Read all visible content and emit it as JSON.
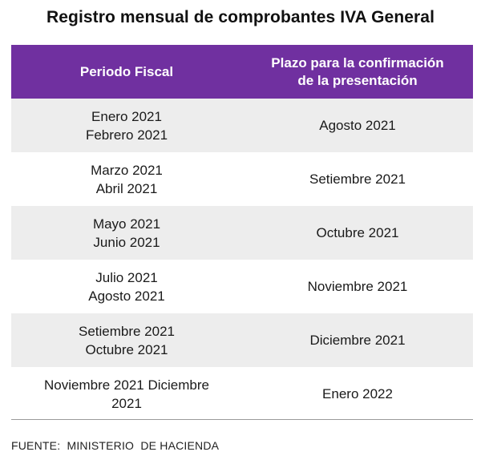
{
  "title": "Registro mensual  de comprobantes  IVA General",
  "table": {
    "headers": [
      "Periodo Fiscal",
      "Plazo para la confirmación\nde la presentación"
    ],
    "rows": [
      {
        "periodo": "Enero 2021\nFebrero 2021",
        "plazo": "Agosto 2021"
      },
      {
        "periodo": "Marzo 2021\nAbril 2021",
        "plazo": "Setiembre 2021"
      },
      {
        "periodo": "Mayo 2021\nJunio 2021",
        "plazo": "Octubre 2021"
      },
      {
        "periodo": "Julio 2021\nAgosto 2021",
        "plazo": "Noviembre 2021"
      },
      {
        "periodo": "Setiembre 2021\nOctubre 2021",
        "plazo": "Diciembre 2021"
      },
      {
        "periodo": "Noviembre 2021 Diciembre\n2021",
        "plazo": "Enero 2022"
      }
    ]
  },
  "source": "FUENTE:  MINISTERIO  DE HACIENDA",
  "colors": {
    "header_bg": "#7030a0",
    "header_text": "#ffffff",
    "row_shade": "#ededed"
  }
}
